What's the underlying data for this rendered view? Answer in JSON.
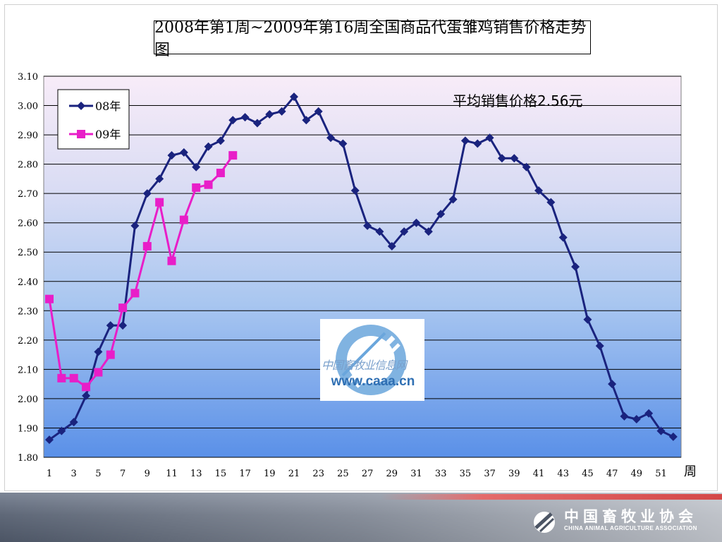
{
  "chart_data": {
    "type": "line",
    "title": "2008年第1周~2009年第16周全国商品代蛋雏鸡销售价格走势图",
    "annotation": "平均销售价格2.56元",
    "xlabel": "周",
    "ylabel": "",
    "xlim": [
      1,
      52
    ],
    "ylim": [
      1.8,
      3.1
    ],
    "x_tick_labels": [
      "1",
      "3",
      "5",
      "7",
      "9",
      "11",
      "13",
      "15",
      "17",
      "19",
      "21",
      "23",
      "25",
      "27",
      "29",
      "31",
      "33",
      "35",
      "37",
      "39",
      "41",
      "43",
      "45",
      "47",
      "49",
      "51"
    ],
    "y_tick_labels": [
      "3.10",
      "3.00",
      "2.90",
      "2.80",
      "2.70",
      "2.60",
      "2.50",
      "2.40",
      "2.30",
      "2.20",
      "2.10",
      "2.00",
      "1.90",
      "1.80"
    ],
    "grid": true,
    "legend_position": "top-left",
    "series": [
      {
        "name": "08年",
        "color": "#1a237e",
        "marker": "diamond",
        "x": [
          1,
          2,
          3,
          4,
          5,
          6,
          7,
          8,
          9,
          10,
          11,
          12,
          13,
          14,
          15,
          16,
          17,
          18,
          19,
          20,
          21,
          22,
          23,
          24,
          25,
          26,
          27,
          28,
          29,
          30,
          31,
          32,
          33,
          34,
          35,
          36,
          37,
          38,
          39,
          40,
          41,
          42,
          43,
          44,
          45,
          46,
          47,
          48,
          49,
          50,
          51,
          52
        ],
        "values": [
          1.86,
          1.89,
          1.92,
          2.01,
          2.16,
          2.25,
          2.25,
          2.59,
          2.7,
          2.75,
          2.83,
          2.84,
          2.79,
          2.86,
          2.88,
          2.95,
          2.96,
          2.94,
          2.97,
          2.98,
          3.03,
          2.95,
          2.98,
          2.89,
          2.87,
          2.71,
          2.59,
          2.57,
          2.52,
          2.57,
          2.6,
          2.57,
          2.63,
          2.68,
          2.88,
          2.87,
          2.89,
          2.82,
          2.82,
          2.79,
          2.71,
          2.67,
          2.55,
          2.45,
          2.27,
          2.18,
          2.05,
          1.94,
          1.93,
          1.95,
          1.89,
          1.87
        ]
      },
      {
        "name": "09年",
        "color": "#e81ec8",
        "marker": "square",
        "x": [
          1,
          2,
          3,
          4,
          5,
          6,
          7,
          8,
          9,
          10,
          11,
          12,
          13,
          14,
          15,
          16
        ],
        "values": [
          2.34,
          2.07,
          2.07,
          2.04,
          2.09,
          2.15,
          2.31,
          2.36,
          2.52,
          2.67,
          2.47,
          2.61,
          2.72,
          2.73,
          2.77,
          2.83
        ]
      }
    ]
  },
  "watermark": {
    "cn_text": "中国畜牧业信息网",
    "url": "www.caaa.cn"
  },
  "footer": {
    "org_name_cn": "中国畜牧业协会",
    "org_name_en": "CHINA ANIMAL AGRICULTURE ASSOCIATION"
  },
  "colors": {
    "plot_top": "#f6e8f6",
    "plot_bottom": "#5b92e8",
    "footer": "#5f6878"
  }
}
